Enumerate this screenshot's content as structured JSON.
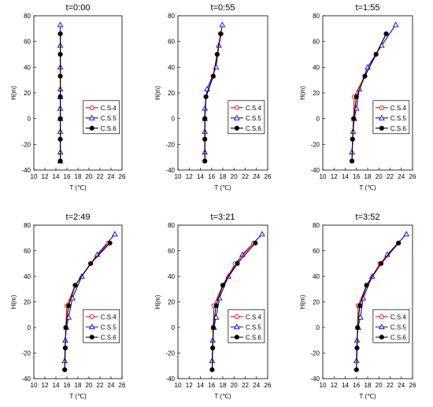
{
  "chart_data": [
    {
      "type": "line",
      "title": "t=0:00",
      "xlabel": "T (℃)",
      "ylabel": "H(m)",
      "xlim": [
        10,
        26
      ],
      "ylim": [
        -40,
        80
      ],
      "xticks": [
        10,
        12,
        14,
        16,
        18,
        20,
        22,
        24,
        26
      ],
      "yticks": [
        -40,
        -20,
        0,
        20,
        40,
        60,
        80
      ],
      "legend": "right-middle",
      "series": [
        {
          "name": "C.S.4",
          "color": "#ff0000",
          "marker": "circle-open",
          "x": [
            14.8,
            14.8,
            14.8,
            14.8,
            14.8,
            14.8,
            14.8
          ],
          "y": [
            -33,
            -16,
            0,
            17,
            33,
            50,
            66
          ]
        },
        {
          "name": "C.S.5",
          "color": "#0000ff",
          "marker": "triangle-open",
          "x": [
            14.8,
            14.8,
            14.8,
            14.8,
            14.8,
            14.8,
            14.8,
            14.8,
            14.8,
            14.8
          ],
          "y": [
            -26,
            -10,
            0,
            8,
            23,
            40,
            57,
            73,
            -33,
            17
          ]
        },
        {
          "name": "C.S.6",
          "color": "#000000",
          "marker": "circle-filled",
          "x": [
            14.8,
            14.8,
            14.8,
            14.8,
            14.8,
            14.8,
            14.8
          ],
          "y": [
            -33,
            -16,
            0,
            17,
            33,
            50,
            66
          ]
        }
      ]
    },
    {
      "type": "line",
      "title": "t=0:55",
      "xlabel": "T (℃)",
      "ylabel": "H(m)",
      "xlim": [
        10,
        26
      ],
      "ylim": [
        -40,
        80
      ],
      "xticks": [
        10,
        12,
        14,
        16,
        18,
        20,
        22,
        24,
        26
      ],
      "yticks": [
        -40,
        -20,
        0,
        20,
        40,
        60,
        80
      ],
      "legend": "right-middle",
      "series": [
        {
          "name": "C.S.4",
          "color": "#ff0000",
          "marker": "circle-open",
          "x": [
            14.8,
            14.8,
            14.8,
            15.0,
            16.3,
            17.0,
            17.7
          ],
          "y": [
            -33,
            -16,
            0,
            17,
            33,
            50,
            66
          ]
        },
        {
          "name": "C.S.5",
          "color": "#0000ff",
          "marker": "triangle-open",
          "x": [
            14.8,
            14.8,
            14.8,
            14.8,
            15.2,
            16.8,
            17.3,
            17.9
          ],
          "y": [
            -26,
            -10,
            0,
            8,
            23,
            40,
            57,
            73
          ]
        },
        {
          "name": "C.S.6",
          "color": "#000000",
          "marker": "circle-filled",
          "x": [
            14.8,
            14.8,
            14.8,
            15.0,
            16.3,
            17.0,
            17.6
          ],
          "y": [
            -33,
            -16,
            0,
            17,
            33,
            50,
            66
          ]
        }
      ]
    },
    {
      "type": "line",
      "title": "t=1:55",
      "xlabel": "T (℃)",
      "ylabel": "H(m)",
      "xlim": [
        10,
        26
      ],
      "ylim": [
        -40,
        80
      ],
      "xticks": [
        10,
        12,
        14,
        16,
        18,
        20,
        22,
        24,
        26
      ],
      "yticks": [
        -40,
        -20,
        0,
        20,
        40,
        60,
        80
      ],
      "legend": "right-middle",
      "series": [
        {
          "name": "C.S.4",
          "color": "#ff0000",
          "marker": "circle-open",
          "x": [
            15.2,
            15.3,
            15.5,
            15.6,
            17.5,
            19.5,
            21.3
          ],
          "y": [
            -33,
            -16,
            0,
            17,
            33,
            50,
            66
          ]
        },
        {
          "name": "C.S.5",
          "color": "#0000ff",
          "marker": "triangle-open",
          "x": [
            15.2,
            15.4,
            15.6,
            16.0,
            16.5,
            18.0,
            20.5,
            23.0
          ],
          "y": [
            -26,
            -10,
            0,
            8,
            23,
            40,
            57,
            73
          ]
        },
        {
          "name": "C.S.6",
          "color": "#000000",
          "marker": "circle-filled",
          "x": [
            15.2,
            15.3,
            15.5,
            16.0,
            17.5,
            19.5,
            21.3
          ],
          "y": [
            -33,
            -16,
            0,
            17,
            33,
            50,
            66
          ]
        }
      ]
    },
    {
      "type": "line",
      "title": "t=2:49",
      "xlabel": "T (℃)",
      "ylabel": "H(m)",
      "xlim": [
        10,
        26
      ],
      "ylim": [
        -40,
        80
      ],
      "xticks": [
        10,
        12,
        14,
        16,
        18,
        20,
        22,
        24,
        26
      ],
      "yticks": [
        -40,
        -20,
        0,
        20,
        40,
        60,
        80
      ],
      "legend": "right-middle",
      "series": [
        {
          "name": "C.S.4",
          "color": "#ff0000",
          "marker": "circle-open",
          "x": [
            15.6,
            15.7,
            15.8,
            16.0,
            17.5,
            20.3,
            23.5
          ],
          "y": [
            -33,
            -16,
            0,
            17,
            33,
            50,
            66
          ]
        },
        {
          "name": "C.S.5",
          "color": "#0000ff",
          "marker": "triangle-open",
          "x": [
            15.6,
            15.7,
            15.9,
            16.3,
            17.0,
            18.7,
            21.5,
            24.7
          ],
          "y": [
            -26,
            -10,
            0,
            8,
            23,
            40,
            57,
            73
          ]
        },
        {
          "name": "C.S.6",
          "color": "#000000",
          "marker": "circle-filled",
          "x": [
            15.6,
            15.7,
            15.8,
            16.3,
            17.5,
            20.3,
            23.8
          ],
          "y": [
            -33,
            -16,
            0,
            17,
            33,
            50,
            66
          ]
        }
      ]
    },
    {
      "type": "line",
      "title": "t=3:21",
      "xlabel": "T (℃)",
      "ylabel": "H(m)",
      "xlim": [
        10,
        26
      ],
      "ylim": [
        -40,
        80
      ],
      "xticks": [
        10,
        12,
        14,
        16,
        18,
        20,
        22,
        24,
        26
      ],
      "yticks": [
        -40,
        -20,
        0,
        20,
        40,
        60,
        80
      ],
      "legend": "right-middle",
      "series": [
        {
          "name": "C.S.4",
          "color": "#ff0000",
          "marker": "circle-open",
          "x": [
            16.1,
            16.2,
            16.3,
            16.4,
            18.0,
            20.2,
            23.5
          ],
          "y": [
            -33,
            -16,
            0,
            17,
            33,
            50,
            66
          ]
        },
        {
          "name": "C.S.5",
          "color": "#0000ff",
          "marker": "triangle-open",
          "x": [
            16.1,
            16.2,
            16.4,
            16.8,
            17.4,
            19.0,
            21.5,
            25.0
          ],
          "y": [
            -26,
            -10,
            0,
            8,
            23,
            40,
            57,
            73
          ]
        },
        {
          "name": "C.S.6",
          "color": "#000000",
          "marker": "circle-filled",
          "x": [
            16.1,
            16.2,
            16.3,
            16.8,
            18.0,
            20.6,
            23.8
          ],
          "y": [
            -33,
            -16,
            0,
            17,
            33,
            50,
            66
          ]
        }
      ]
    },
    {
      "type": "line",
      "title": "t=3:52",
      "xlabel": "T (℃)",
      "ylabel": "H(m)",
      "xlim": [
        10,
        26
      ],
      "ylim": [
        -40,
        80
      ],
      "xticks": [
        10,
        12,
        14,
        16,
        18,
        20,
        22,
        24,
        26
      ],
      "yticks": [
        -40,
        -20,
        0,
        20,
        40,
        60,
        80
      ],
      "legend": "right-middle",
      "series": [
        {
          "name": "C.S.4",
          "color": "#ff0000",
          "marker": "circle-open",
          "x": [
            16.0,
            16.1,
            16.2,
            16.3,
            17.8,
            20.2,
            23.5
          ],
          "y": [
            -33,
            -16,
            0,
            17,
            33,
            50,
            66
          ]
        },
        {
          "name": "C.S.5",
          "color": "#0000ff",
          "marker": "triangle-open",
          "x": [
            16.0,
            16.1,
            16.3,
            16.7,
            17.2,
            18.8,
            21.5,
            24.9
          ],
          "y": [
            -26,
            -10,
            0,
            8,
            23,
            40,
            57,
            73
          ]
        },
        {
          "name": "C.S.6",
          "color": "#000000",
          "marker": "circle-filled",
          "x": [
            16.0,
            16.1,
            16.2,
            16.6,
            17.8,
            20.4,
            23.5
          ],
          "y": [
            -33,
            -16,
            0,
            17,
            33,
            50,
            66
          ]
        }
      ]
    }
  ]
}
